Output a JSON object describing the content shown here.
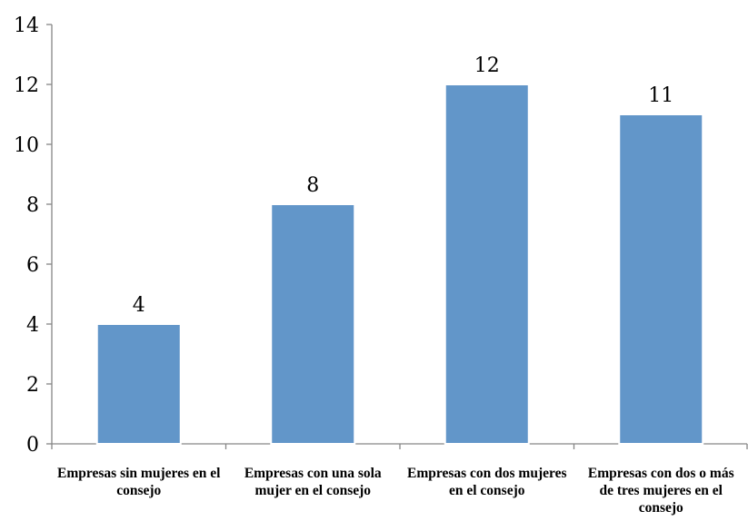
{
  "chart_data": {
    "type": "bar",
    "title": "",
    "xlabel": "",
    "ylabel": "",
    "categories": [
      "Empresas sin mujeres en el consejo",
      "Empresas con una sola mujer en el consejo",
      "Empresas con dos mujeres en el consejo",
      "Empresas con dos o más de tres mujeres en el consejo"
    ],
    "values": [
      4,
      8,
      12,
      11
    ],
    "ylim": [
      0,
      14
    ],
    "yticks": [
      0,
      2,
      4,
      6,
      8,
      10,
      12,
      14
    ],
    "bar_color": "#6296C9",
    "grid": false,
    "legend": "none",
    "data_labels": true
  }
}
